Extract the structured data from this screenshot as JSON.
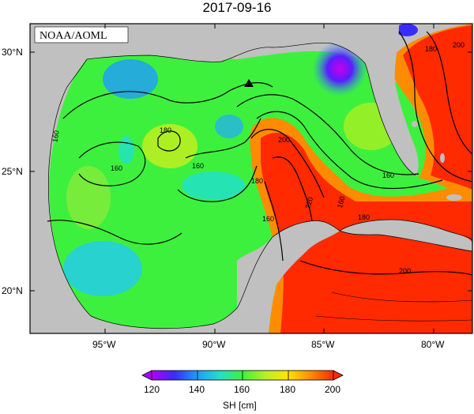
{
  "title": "2017-09-16",
  "credit": "NOAA/AOML",
  "axes": {
    "lat_ticks": [
      "30°N",
      "25°N",
      "20°N"
    ],
    "lon_ticks": [
      "95°W",
      "90°W",
      "85°W",
      "80°W"
    ]
  },
  "contour_labels": [
    "180",
    "160",
    "160",
    "160",
    "160",
    "180",
    "200",
    "220",
    "160",
    "180",
    "160",
    "180",
    "200",
    "200"
  ],
  "marker": {
    "symbol": "triangle",
    "lon": -88.4,
    "lat": 28.8
  },
  "colorbar": {
    "label": "SH [cm]",
    "ticks": [
      "120",
      "140",
      "160",
      "180",
      "200"
    ],
    "colors": [
      "#b000ff",
      "#3a2bff",
      "#1f9bff",
      "#22e0c8",
      "#3ef03e",
      "#b8f020",
      "#ffe400",
      "#ff8c00",
      "#ff2a00"
    ]
  },
  "colors": {
    "land": "#c0c0c0",
    "frame": "#000000"
  }
}
